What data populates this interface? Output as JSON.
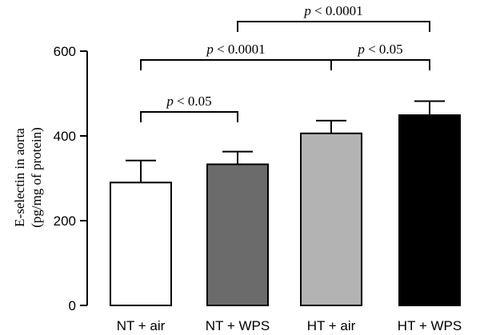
{
  "chart_data": {
    "type": "bar",
    "categories": [
      "NT + air",
      "NT + WPS",
      "HT + air",
      "HT + WPS"
    ],
    "values": [
      290,
      333,
      406,
      449
    ],
    "errors": [
      52,
      30,
      30,
      33
    ],
    "colors": [
      "#ffffff",
      "#6b6b6b",
      "#b3b3b3",
      "#000000"
    ],
    "ylabel_line1": "E-selectin in aorta",
    "ylabel_line2": "(pg/mg of protein)",
    "ylim": [
      0,
      600
    ],
    "yticks": [
      0,
      200,
      400,
      600
    ],
    "significance": [
      {
        "from": 0,
        "to": 1,
        "p": "p",
        "label": " < 0.05",
        "level": 1
      },
      {
        "from": 0,
        "to": 2,
        "p": "p",
        "label": " < 0.0001",
        "level": 2
      },
      {
        "from": 2,
        "to": 3,
        "p": "p",
        "label": " < 0.05",
        "level": 2
      },
      {
        "from": 1,
        "to": 3,
        "p": "p",
        "label": " < 0.0001",
        "level": 3
      }
    ]
  }
}
